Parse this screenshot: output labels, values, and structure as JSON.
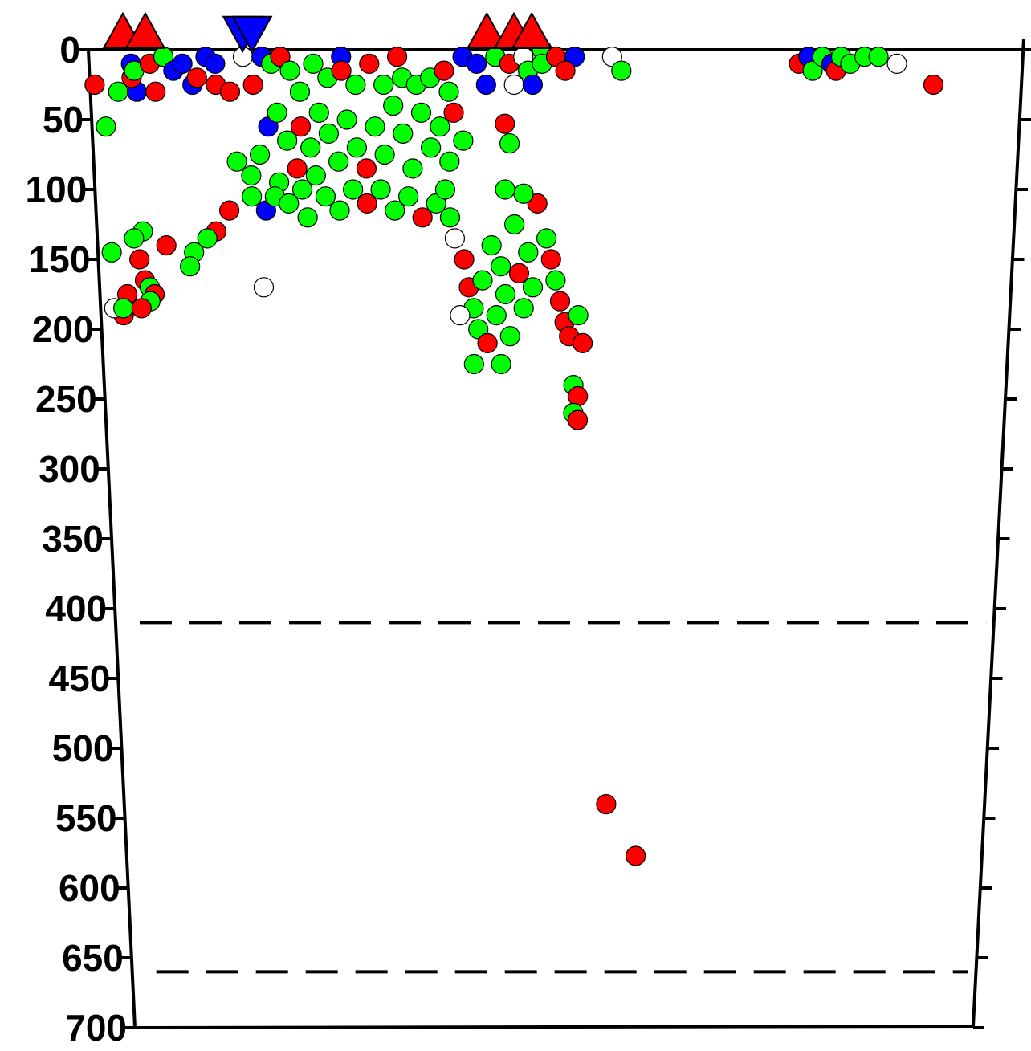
{
  "chart_data": {
    "type": "scatter",
    "title": "",
    "xlabel": "",
    "ylabel": "",
    "y_axis": {
      "range": [
        0,
        700
      ],
      "inverted": true,
      "ticks": [
        0,
        50,
        100,
        150,
        200,
        250,
        300,
        350,
        400,
        450,
        500,
        550,
        600,
        650,
        700
      ],
      "tick_labels": [
        "0",
        "50",
        "100",
        "150",
        "200",
        "250",
        "300",
        "350",
        "400",
        "450",
        "500",
        "550",
        "600",
        "650",
        "700"
      ]
    },
    "x_axis": {
      "range": [
        0,
        100
      ],
      "labeled": false
    },
    "grid": false,
    "legend": "none",
    "reference_lines": [
      {
        "depth": 410,
        "style": "dashed"
      },
      {
        "depth": 660,
        "style": "dashed"
      }
    ],
    "colors": {
      "red": "#ff0000",
      "blue": "#0000ff",
      "green": "#00ff00",
      "white": "#ffffff",
      "outline": "#000000"
    },
    "surface_markers": [
      {
        "shape": "triangle-up",
        "color": "red",
        "x": 3.7
      },
      {
        "shape": "triangle-up",
        "color": "red",
        "x": 6.1
      },
      {
        "shape": "triangle-down",
        "color": "blue",
        "x": 16.5
      },
      {
        "shape": "triangle-down",
        "color": "blue",
        "x": 17.5
      },
      {
        "shape": "triangle-up",
        "color": "red",
        "x": 42.6
      },
      {
        "shape": "triangle-up",
        "color": "red",
        "x": 45.5
      },
      {
        "shape": "triangle-up",
        "color": "red",
        "x": 47.4
      }
    ],
    "points": [
      {
        "x": 0.5,
        "y": 25,
        "color": "red"
      },
      {
        "x": 1.5,
        "y": 55,
        "color": "green"
      },
      {
        "x": 3.0,
        "y": 30,
        "color": "green"
      },
      {
        "x": 4.5,
        "y": 10,
        "color": "blue"
      },
      {
        "x": 5.0,
        "y": 30,
        "color": "blue"
      },
      {
        "x": 4.5,
        "y": 20,
        "color": "red"
      },
      {
        "x": 4.8,
        "y": 15,
        "color": "green"
      },
      {
        "x": 6.5,
        "y": 10,
        "color": "red"
      },
      {
        "x": 7.0,
        "y": 30,
        "color": "red"
      },
      {
        "x": 8.0,
        "y": 5,
        "color": "green"
      },
      {
        "x": 9.0,
        "y": 15,
        "color": "blue"
      },
      {
        "x": 10.0,
        "y": 10,
        "color": "blue"
      },
      {
        "x": 11.0,
        "y": 25,
        "color": "blue"
      },
      {
        "x": 11.5,
        "y": 20,
        "color": "red"
      },
      {
        "x": 12.5,
        "y": 5,
        "color": "blue"
      },
      {
        "x": 13.5,
        "y": 10,
        "color": "blue"
      },
      {
        "x": 13.5,
        "y": 25,
        "color": "red"
      },
      {
        "x": 15.0,
        "y": 30,
        "color": "red"
      },
      {
        "x": 16.5,
        "y": 5,
        "color": "white"
      },
      {
        "x": 17.5,
        "y": 25,
        "color": "red"
      },
      {
        "x": 18.5,
        "y": 5,
        "color": "blue"
      },
      {
        "x": 19.5,
        "y": 10,
        "color": "green"
      },
      {
        "x": 20.5,
        "y": 5,
        "color": "red"
      },
      {
        "x": 21.5,
        "y": 15,
        "color": "green"
      },
      {
        "x": 22.5,
        "y": 30,
        "color": "green"
      },
      {
        "x": 24.0,
        "y": 10,
        "color": "green"
      },
      {
        "x": 25.5,
        "y": 20,
        "color": "green"
      },
      {
        "x": 27.0,
        "y": 5,
        "color": "blue"
      },
      {
        "x": 27.0,
        "y": 15,
        "color": "red"
      },
      {
        "x": 28.5,
        "y": 25,
        "color": "green"
      },
      {
        "x": 30.0,
        "y": 10,
        "color": "red"
      },
      {
        "x": 31.5,
        "y": 25,
        "color": "green"
      },
      {
        "x": 33.0,
        "y": 5,
        "color": "red"
      },
      {
        "x": 33.5,
        "y": 20,
        "color": "green"
      },
      {
        "x": 35.0,
        "y": 25,
        "color": "green"
      },
      {
        "x": 36.5,
        "y": 20,
        "color": "green"
      },
      {
        "x": 38.0,
        "y": 15,
        "color": "red"
      },
      {
        "x": 38.5,
        "y": 30,
        "color": "green"
      },
      {
        "x": 40.0,
        "y": 5,
        "color": "blue"
      },
      {
        "x": 41.5,
        "y": 10,
        "color": "blue"
      },
      {
        "x": 42.5,
        "y": 25,
        "color": "blue"
      },
      {
        "x": 43.5,
        "y": 5,
        "color": "green"
      },
      {
        "x": 45.0,
        "y": 10,
        "color": "red"
      },
      {
        "x": 45.5,
        "y": 25,
        "color": "white"
      },
      {
        "x": 46.5,
        "y": 5,
        "color": "white"
      },
      {
        "x": 47.0,
        "y": 15,
        "color": "green"
      },
      {
        "x": 47.5,
        "y": 25,
        "color": "blue"
      },
      {
        "x": 48.5,
        "y": 0,
        "color": "green"
      },
      {
        "x": 48.5,
        "y": 10,
        "color": "green"
      },
      {
        "x": 50.0,
        "y": 5,
        "color": "red"
      },
      {
        "x": 52.0,
        "y": 5,
        "color": "blue"
      },
      {
        "x": 51.0,
        "y": 15,
        "color": "red"
      },
      {
        "x": 56.0,
        "y": 5,
        "color": "white"
      },
      {
        "x": 57.0,
        "y": 15,
        "color": "green"
      },
      {
        "x": 76.0,
        "y": 10,
        "color": "red"
      },
      {
        "x": 77.0,
        "y": 5,
        "color": "blue"
      },
      {
        "x": 77.5,
        "y": 15,
        "color": "green"
      },
      {
        "x": 78.5,
        "y": 5,
        "color": "green"
      },
      {
        "x": 79.5,
        "y": 10,
        "color": "blue"
      },
      {
        "x": 80.0,
        "y": 15,
        "color": "red"
      },
      {
        "x": 80.5,
        "y": 5,
        "color": "green"
      },
      {
        "x": 81.5,
        "y": 10,
        "color": "green"
      },
      {
        "x": 83.0,
        "y": 5,
        "color": "green"
      },
      {
        "x": 84.5,
        "y": 5,
        "color": "green"
      },
      {
        "x": 86.5,
        "y": 10,
        "color": "white"
      },
      {
        "x": 90.5,
        "y": 25,
        "color": "red"
      },
      {
        "x": 15.5,
        "y": 80,
        "color": "green"
      },
      {
        "x": 17.0,
        "y": 90,
        "color": "green"
      },
      {
        "x": 18.0,
        "y": 75,
        "color": "green"
      },
      {
        "x": 20.0,
        "y": 95,
        "color": "green"
      },
      {
        "x": 22.0,
        "y": 85,
        "color": "red"
      },
      {
        "x": 24.0,
        "y": 90,
        "color": "green"
      },
      {
        "x": 19.0,
        "y": 55,
        "color": "blue"
      },
      {
        "x": 20.0,
        "y": 45,
        "color": "green"
      },
      {
        "x": 21.0,
        "y": 65,
        "color": "green"
      },
      {
        "x": 22.5,
        "y": 55,
        "color": "red"
      },
      {
        "x": 23.5,
        "y": 70,
        "color": "green"
      },
      {
        "x": 24.5,
        "y": 45,
        "color": "green"
      },
      {
        "x": 25.5,
        "y": 60,
        "color": "green"
      },
      {
        "x": 26.5,
        "y": 80,
        "color": "green"
      },
      {
        "x": 27.5,
        "y": 50,
        "color": "green"
      },
      {
        "x": 28.5,
        "y": 70,
        "color": "green"
      },
      {
        "x": 29.5,
        "y": 85,
        "color": "red"
      },
      {
        "x": 30.5,
        "y": 55,
        "color": "green"
      },
      {
        "x": 31.5,
        "y": 75,
        "color": "green"
      },
      {
        "x": 32.5,
        "y": 40,
        "color": "green"
      },
      {
        "x": 33.5,
        "y": 60,
        "color": "green"
      },
      {
        "x": 34.5,
        "y": 85,
        "color": "green"
      },
      {
        "x": 35.5,
        "y": 45,
        "color": "green"
      },
      {
        "x": 36.5,
        "y": 70,
        "color": "green"
      },
      {
        "x": 37.5,
        "y": 55,
        "color": "green"
      },
      {
        "x": 38.5,
        "y": 80,
        "color": "green"
      },
      {
        "x": 39.0,
        "y": 45,
        "color": "red"
      },
      {
        "x": 40.0,
        "y": 65,
        "color": "green"
      },
      {
        "x": 17.0,
        "y": 105,
        "color": "green"
      },
      {
        "x": 18.5,
        "y": 115,
        "color": "blue"
      },
      {
        "x": 19.5,
        "y": 105,
        "color": "green"
      },
      {
        "x": 21.0,
        "y": 110,
        "color": "green"
      },
      {
        "x": 22.5,
        "y": 100,
        "color": "green"
      },
      {
        "x": 23.0,
        "y": 120,
        "color": "green"
      },
      {
        "x": 25.0,
        "y": 105,
        "color": "green"
      },
      {
        "x": 26.5,
        "y": 115,
        "color": "green"
      },
      {
        "x": 28.0,
        "y": 100,
        "color": "green"
      },
      {
        "x": 29.5,
        "y": 110,
        "color": "red"
      },
      {
        "x": 31.0,
        "y": 100,
        "color": "green"
      },
      {
        "x": 32.5,
        "y": 115,
        "color": "green"
      },
      {
        "x": 34.0,
        "y": 105,
        "color": "green"
      },
      {
        "x": 35.5,
        "y": 120,
        "color": "red"
      },
      {
        "x": 37.0,
        "y": 110,
        "color": "green"
      },
      {
        "x": 14.5,
        "y": 115,
        "color": "red"
      },
      {
        "x": 13.0,
        "y": 130,
        "color": "red"
      },
      {
        "x": 12.0,
        "y": 135,
        "color": "green"
      },
      {
        "x": 10.5,
        "y": 145,
        "color": "green"
      },
      {
        "x": 10.0,
        "y": 155,
        "color": "green"
      },
      {
        "x": 5.0,
        "y": 130,
        "color": "green"
      },
      {
        "x": 4.0,
        "y": 135,
        "color": "green"
      },
      {
        "x": 1.5,
        "y": 145,
        "color": "green"
      },
      {
        "x": 4.5,
        "y": 150,
        "color": "red"
      },
      {
        "x": 7.5,
        "y": 140,
        "color": "red"
      },
      {
        "x": 5.0,
        "y": 165,
        "color": "red"
      },
      {
        "x": 5.5,
        "y": 170,
        "color": "green"
      },
      {
        "x": 6.0,
        "y": 175,
        "color": "red"
      },
      {
        "x": 5.5,
        "y": 180,
        "color": "green"
      },
      {
        "x": 3.0,
        "y": 175,
        "color": "red"
      },
      {
        "x": 2.5,
        "y": 190,
        "color": "red"
      },
      {
        "x": 1.5,
        "y": 185,
        "color": "white"
      },
      {
        "x": 2.5,
        "y": 185,
        "color": "green"
      },
      {
        "x": 4.5,
        "y": 185,
        "color": "red"
      },
      {
        "x": 18.0,
        "y": 170,
        "color": "white"
      },
      {
        "x": 38.0,
        "y": 100,
        "color": "green"
      },
      {
        "x": 38.5,
        "y": 120,
        "color": "green"
      },
      {
        "x": 39.0,
        "y": 135,
        "color": "white"
      },
      {
        "x": 40.0,
        "y": 150,
        "color": "red"
      },
      {
        "x": 40.5,
        "y": 170,
        "color": "red"
      },
      {
        "x": 41.0,
        "y": 185,
        "color": "green"
      },
      {
        "x": 41.5,
        "y": 200,
        "color": "green"
      },
      {
        "x": 42.0,
        "y": 165,
        "color": "green"
      },
      {
        "x": 42.5,
        "y": 210,
        "color": "red"
      },
      {
        "x": 43.0,
        "y": 140,
        "color": "green"
      },
      {
        "x": 43.5,
        "y": 190,
        "color": "green"
      },
      {
        "x": 44.0,
        "y": 155,
        "color": "green"
      },
      {
        "x": 44.5,
        "y": 175,
        "color": "green"
      },
      {
        "x": 45.0,
        "y": 205,
        "color": "green"
      },
      {
        "x": 45.5,
        "y": 125,
        "color": "green"
      },
      {
        "x": 46.0,
        "y": 160,
        "color": "red"
      },
      {
        "x": 46.5,
        "y": 185,
        "color": "green"
      },
      {
        "x": 47.0,
        "y": 145,
        "color": "green"
      },
      {
        "x": 47.5,
        "y": 170,
        "color": "green"
      },
      {
        "x": 39.5,
        "y": 190,
        "color": "white"
      },
      {
        "x": 41.0,
        "y": 225,
        "color": "green"
      },
      {
        "x": 44.0,
        "y": 225,
        "color": "green"
      },
      {
        "x": 48.0,
        "y": 110,
        "color": "red"
      },
      {
        "x": 49.0,
        "y": 135,
        "color": "green"
      },
      {
        "x": 49.5,
        "y": 150,
        "color": "red"
      },
      {
        "x": 50.0,
        "y": 165,
        "color": "green"
      },
      {
        "x": 50.5,
        "y": 180,
        "color": "red"
      },
      {
        "x": 51.0,
        "y": 195,
        "color": "red"
      },
      {
        "x": 51.5,
        "y": 205,
        "color": "red"
      },
      {
        "x": 52.5,
        "y": 190,
        "color": "green"
      },
      {
        "x": 53.0,
        "y": 210,
        "color": "red"
      },
      {
        "x": 52.0,
        "y": 240,
        "color": "green"
      },
      {
        "x": 52.5,
        "y": 248,
        "color": "red"
      },
      {
        "x": 52.0,
        "y": 260,
        "color": "green"
      },
      {
        "x": 52.5,
        "y": 265,
        "color": "red"
      },
      {
        "x": 46.5,
        "y": 103,
        "color": "green"
      },
      {
        "x": 44.5,
        "y": 100,
        "color": "green"
      },
      {
        "x": 45.0,
        "y": 67,
        "color": "green"
      },
      {
        "x": 44.5,
        "y": 53,
        "color": "red"
      },
      {
        "x": 56.0,
        "y": 540,
        "color": "red"
      },
      {
        "x": 59.5,
        "y": 577,
        "color": "red"
      }
    ]
  }
}
